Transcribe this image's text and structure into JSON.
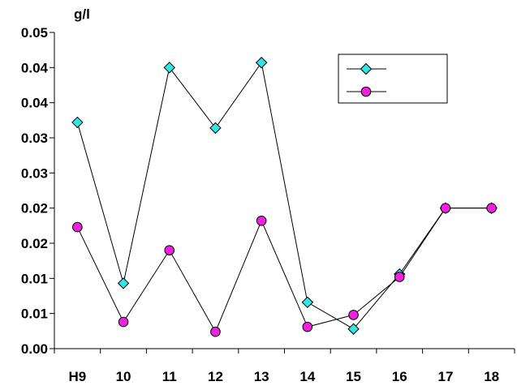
{
  "chart_data": {
    "type": "line",
    "ylabel": "g/l",
    "categories": [
      "H9",
      "10",
      "11",
      "12",
      "13",
      "14",
      "15",
      "16",
      "17",
      "18"
    ],
    "y_tick_labels": [
      "0.00",
      "0.01",
      "0.01",
      "0.02",
      "0.02",
      "0.03",
      "0.03",
      "0.04",
      "0.04",
      "0.05"
    ],
    "ylim": [
      0,
      0.045
    ],
    "grid": false,
    "legend_position": "top-right",
    "series": [
      {
        "marker": "diamond",
        "color": "#33e6e6",
        "values": [
          0.0322,
          0.0093,
          0.04,
          0.0314,
          0.0407,
          0.0066,
          0.0028,
          0.0106,
          0.02,
          0.02
        ]
      },
      {
        "marker": "circle",
        "color": "#ee22dd",
        "values": [
          0.0173,
          0.0038,
          0.014,
          0.0024,
          0.0182,
          0.0031,
          0.0048,
          0.0102,
          0.02,
          0.02
        ]
      }
    ]
  }
}
